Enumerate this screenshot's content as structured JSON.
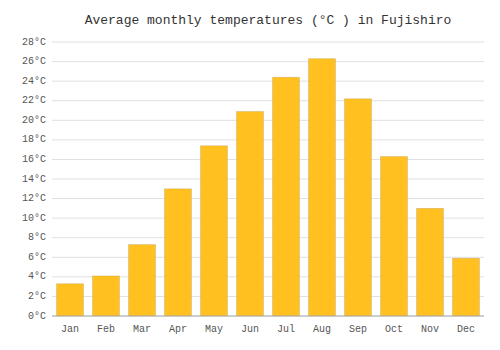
{
  "chart_data": {
    "type": "bar",
    "title": "Average monthly temperatures (°C ) in Fujishiro",
    "categories": [
      "Jan",
      "Feb",
      "Mar",
      "Apr",
      "May",
      "Jun",
      "Jul",
      "Aug",
      "Sep",
      "Oct",
      "Nov",
      "Dec"
    ],
    "values": [
      3.3,
      4.1,
      7.3,
      13.0,
      17.4,
      20.9,
      24.4,
      26.3,
      22.2,
      16.3,
      11.0,
      5.9
    ],
    "color": "#FFC020",
    "ylim": [
      0,
      28
    ],
    "yticks": [
      {
        "value": 0,
        "label": "0°C"
      },
      {
        "value": 2,
        "label": "2°C"
      },
      {
        "value": 4,
        "label": "4°C"
      },
      {
        "value": 6,
        "label": "6°C"
      },
      {
        "value": 8,
        "label": "8°C"
      },
      {
        "value": 10,
        "label": "10°C"
      },
      {
        "value": 12,
        "label": "12°C"
      },
      {
        "value": 14,
        "label": "14°C"
      },
      {
        "value": 16,
        "label": "16°C"
      },
      {
        "value": 18,
        "label": "18°C"
      },
      {
        "value": 20,
        "label": "20°C"
      },
      {
        "value": 22,
        "label": "22°C"
      },
      {
        "value": 24,
        "label": "24°C"
      },
      {
        "value": 26,
        "label": "26°C"
      },
      {
        "value": 28,
        "label": "28°C"
      }
    ],
    "grid": true
  }
}
